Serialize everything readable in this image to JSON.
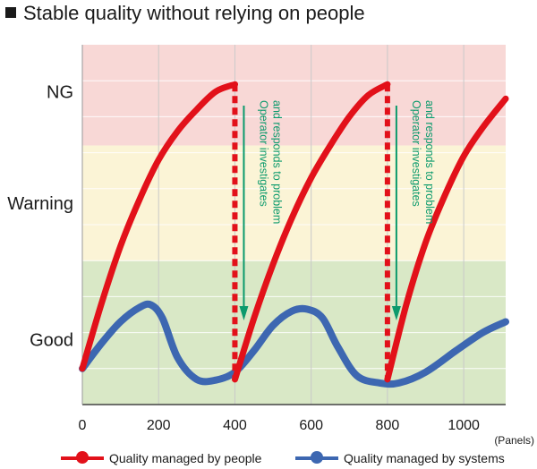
{
  "title": "Stable quality without relying on people",
  "chart_data": {
    "type": "line",
    "xlabel": "(Panels)",
    "xlim": [
      0,
      1110
    ],
    "xticks": [
      0,
      200,
      400,
      600,
      800,
      1000
    ],
    "x_tick_labels": [
      "0",
      "200",
      "400",
      "600",
      "800",
      "1000"
    ],
    "y_levels": [
      "NG",
      "Warning",
      "Good"
    ],
    "ylim": [
      0,
      1
    ],
    "grid": true,
    "zones": [
      {
        "label": "NG",
        "from": 0.72,
        "to": 1.0,
        "color": "#f8d8d6"
      },
      {
        "label": "Warning",
        "from": 0.4,
        "to": 0.72,
        "color": "#fbf4d6"
      },
      {
        "label": "Good",
        "from": 0.0,
        "to": 0.4,
        "color": "#d9e8c6"
      }
    ],
    "series": [
      {
        "name": "Quality managed by people",
        "color": "#e2111a",
        "x": [
          0,
          50,
          100,
          150,
          200,
          250,
          300,
          350,
          400,
          400,
          450,
          500,
          550,
          600,
          650,
          700,
          750,
          800,
          800,
          850,
          900,
          950,
          1000,
          1050,
          1110
        ],
        "y": [
          0.1,
          0.28,
          0.44,
          0.57,
          0.68,
          0.76,
          0.82,
          0.87,
          0.89,
          0.07,
          0.24,
          0.39,
          0.52,
          0.63,
          0.72,
          0.8,
          0.86,
          0.89,
          0.07,
          0.28,
          0.45,
          0.58,
          0.69,
          0.77,
          0.85
        ]
      },
      {
        "name": "Quality managed by systems",
        "color": "#3d67b1",
        "x": [
          0,
          50,
          100,
          150,
          180,
          210,
          250,
          300,
          350,
          400,
          450,
          500,
          550,
          590,
          630,
          670,
          720,
          780,
          830,
          900,
          980,
          1050,
          1110
        ],
        "y": [
          0.1,
          0.17,
          0.23,
          0.27,
          0.277,
          0.24,
          0.13,
          0.07,
          0.068,
          0.09,
          0.15,
          0.22,
          0.26,
          0.265,
          0.24,
          0.16,
          0.08,
          0.06,
          0.06,
          0.09,
          0.15,
          0.2,
          0.23
        ]
      }
    ],
    "annotations": [
      {
        "text": [
          "Operator investigates",
          "and responds to problem"
        ],
        "x": 400,
        "color": "#0b9a6c"
      },
      {
        "text": [
          "Operator investigates",
          "and responds to problem"
        ],
        "x": 800,
        "color": "#0b9a6c"
      }
    ]
  }
}
